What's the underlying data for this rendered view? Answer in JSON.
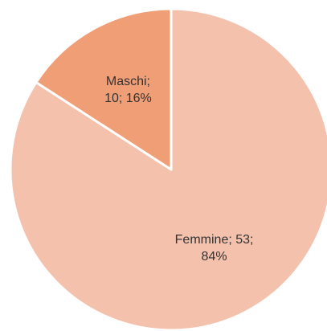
{
  "chart_data": {
    "type": "pie",
    "values": [
      53,
      10
    ],
    "value_labels": [
      [
        "Femmine; 53;",
        "84%"
      ],
      [
        "Maschi;",
        "10; 16%"
      ]
    ],
    "colors": [
      "#f4c1ad",
      "#f09e76"
    ]
  }
}
